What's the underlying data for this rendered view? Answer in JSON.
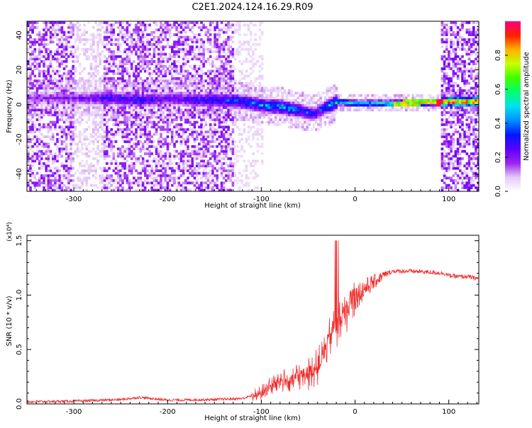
{
  "title": "C2E1.2024.124.16.29.R09",
  "chart_data": [
    {
      "type": "heatmap",
      "xlabel": "Height of straight line (km)",
      "ylabel": "Frequency (Hz)",
      "xlim": [
        -350,
        132
      ],
      "ylim": [
        -50,
        48
      ],
      "x_ticks": [
        -300,
        -200,
        -100,
        0,
        100
      ],
      "y_ticks": [
        -40,
        -20,
        0,
        20,
        40
      ],
      "colorbar": {
        "label": "Normalized spectral amplitude",
        "range": [
          0,
          1
        ],
        "ticks": [
          "0.0",
          "0.2",
          "0.4",
          "0.6",
          "0.8"
        ],
        "colormap": [
          "#ffffff",
          "#e4c8f6",
          "#9a22ee",
          "#5a00ff",
          "#0018ff",
          "#0090ff",
          "#00e0f0",
          "#00ff70",
          "#40ff00",
          "#c8ff00",
          "#ffb000",
          "#ff2000",
          "#ff0080"
        ]
      },
      "ridge": {
        "x": [
          -350,
          -300,
          -260,
          -230,
          -200,
          -170,
          -140,
          -120,
          -100,
          -80,
          -60,
          -45,
          -35,
          -20,
          0,
          40,
          90
        ],
        "freq_center": [
          3,
          3,
          3,
          2,
          3,
          2,
          2,
          1,
          -1,
          -2,
          -4,
          -6,
          -3,
          1,
          0,
          0,
          1
        ],
        "amplitude": [
          0.18,
          0.2,
          0.3,
          0.32,
          0.25,
          0.3,
          0.36,
          0.4,
          0.42,
          0.45,
          0.38,
          0.32,
          0.35,
          0.55,
          0.5,
          0.65,
          0.95
        ]
      }
    },
    {
      "type": "line",
      "xlabel": "Height of straight line (km)",
      "ylabel": "SNR (10 * v/v)",
      "y_scale_label": "(x10⁴)",
      "xlim": [
        -350,
        132
      ],
      "ylim": [
        0,
        1.55
      ],
      "x_ticks": [
        -300,
        -200,
        -100,
        0,
        100
      ],
      "y_ticks": [
        "0.0",
        "0.5",
        "1.0",
        "1.5"
      ],
      "series": [
        {
          "color": "#ee3030",
          "x": [
            -350,
            -300,
            -250,
            -230,
            -200,
            -150,
            -120,
            -100,
            -90,
            -80,
            -70,
            -60,
            -50,
            -40,
            -35,
            -30,
            -25,
            -22,
            -20,
            -18,
            -15,
            -10,
            -5,
            0,
            5,
            10,
            20,
            30,
            40,
            60,
            80,
            95,
            100,
            110,
            120,
            132
          ],
          "y": [
            0.02,
            0.025,
            0.04,
            0.06,
            0.035,
            0.04,
            0.05,
            0.1,
            0.16,
            0.22,
            0.2,
            0.26,
            0.28,
            0.34,
            0.42,
            0.55,
            0.65,
            0.75,
            0.7,
            0.72,
            0.78,
            0.86,
            0.92,
            0.98,
            1.02,
            1.06,
            1.12,
            1.18,
            1.22,
            1.22,
            1.21,
            1.2,
            1.18,
            1.17,
            1.17,
            1.15
          ]
        }
      ]
    }
  ]
}
